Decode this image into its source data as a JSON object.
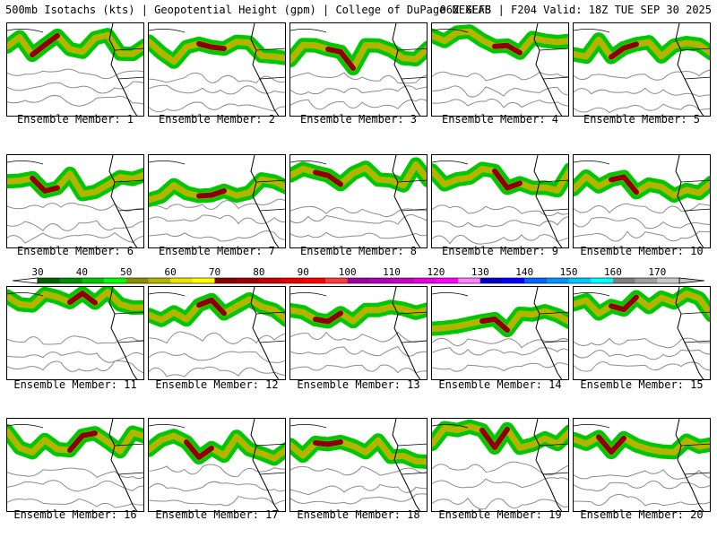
{
  "header": {
    "left": "500mb Isotachs (kts) | Geopotential Height (gpm) | College of DuPage NEXLAB",
    "right": "06Z GEFS | F204 Valid: 18Z TUE SEP 30 2025"
  },
  "member_caption_prefix": "Ensemble Member: ",
  "members": [
    1,
    2,
    3,
    4,
    5,
    6,
    7,
    8,
    9,
    10,
    11,
    12,
    13,
    14,
    15,
    16,
    17,
    18,
    19,
    20
  ],
  "colorbar": {
    "ticks": [
      "30",
      "40",
      "50",
      "60",
      "70",
      "80",
      "90",
      "100",
      "110",
      "120",
      "130",
      "140",
      "150",
      "160",
      "170"
    ],
    "colors": [
      "#006400",
      "#008f00",
      "#00c800",
      "#00ff00",
      "#8c8c00",
      "#b4b400",
      "#e6e600",
      "#ffff00",
      "#8b0000",
      "#a00000",
      "#c80000",
      "#e60000",
      "#ff0000",
      "#ff3c3c",
      "#a000a0",
      "#b400b4",
      "#c800c8",
      "#e600e6",
      "#ff00ff",
      "#ff80ff",
      "#0000c8",
      "#0000ff",
      "#0064ff",
      "#0096ff",
      "#00c8ff",
      "#00ffff",
      "#808080",
      "#a0a0a0",
      "#c8c8c8"
    ]
  },
  "colors": {
    "background": "#ffffff",
    "border": "#000000",
    "jet_core": "#8b0000",
    "jet_mid": "#b4b400",
    "jet_low": "#00c800",
    "height_contour": "#8c8c8c",
    "coastline": "#000000"
  }
}
